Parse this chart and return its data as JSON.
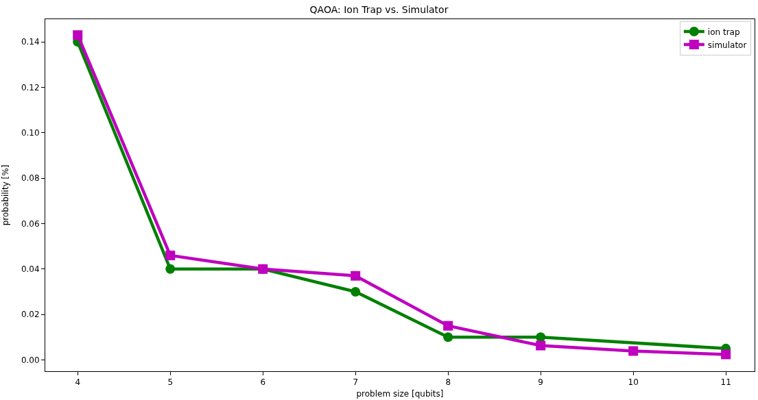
{
  "chart_data": {
    "type": "line",
    "title": "QAOA: Ion Trap vs. Simulator",
    "xlabel": "problem size [qubits]",
    "ylabel": "probability [%]",
    "series": [
      {
        "name": "ion trap",
        "color": "#008000",
        "marker": "circle",
        "x": [
          4,
          5,
          6,
          7,
          8,
          9,
          11
        ],
        "values": [
          0.14,
          0.04,
          0.04,
          0.03,
          0.01,
          0.01,
          0.005
        ]
      },
      {
        "name": "simulator",
        "color": "#bf00bf",
        "marker": "square",
        "x": [
          4,
          5,
          6,
          7,
          8,
          9,
          10,
          11
        ],
        "values": [
          0.143,
          0.046,
          0.04,
          0.037,
          0.015,
          0.0063,
          0.0039,
          0.0024
        ]
      }
    ],
    "xlim": [
      3.65,
      11.31
    ],
    "xticks": [
      4,
      5,
      6,
      7,
      8,
      9,
      10,
      11
    ],
    "ylim": [
      -0.005,
      0.15
    ],
    "yticks": [
      {
        "value": 0,
        "label": "0.00"
      },
      {
        "value": 0.02,
        "label": "0.02"
      },
      {
        "value": 0.04,
        "label": "0.04"
      },
      {
        "value": 0.06,
        "label": "0.06"
      },
      {
        "value": 0.08,
        "label": "0.08"
      },
      {
        "value": 0.1,
        "label": "0.10"
      },
      {
        "value": 0.12,
        "label": "0.12"
      },
      {
        "value": 0.14,
        "label": "0.14"
      }
    ],
    "legend": "top right",
    "line_style": "solid"
  }
}
